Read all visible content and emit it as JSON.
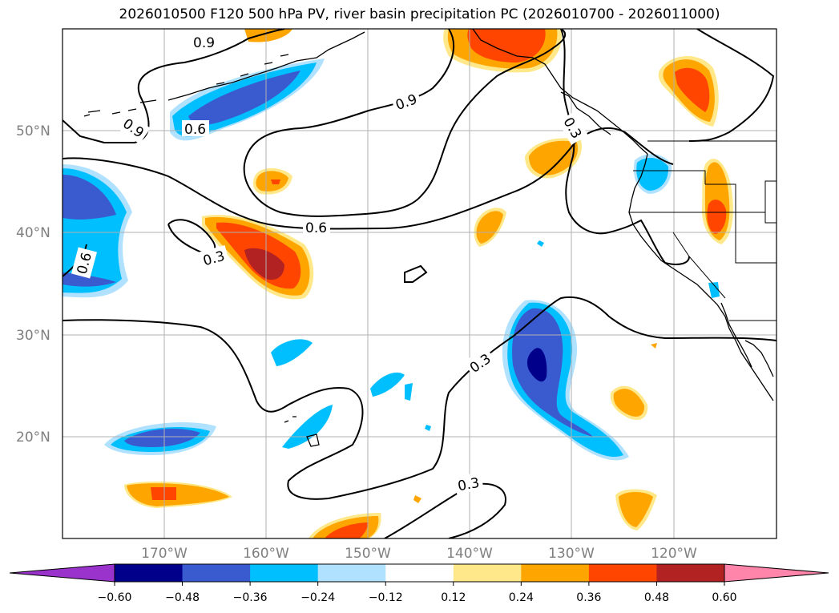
{
  "title": "2026010500 F120 500 hPa PV, river basin precipitation PC (2026010700 - 2026011000)",
  "map": {
    "lat_labels": [
      "50°N",
      "40°N",
      "30°N",
      "20°N"
    ],
    "lon_labels": [
      "170°W",
      "160°W",
      "150°W",
      "140°W",
      "130°W",
      "120°W"
    ],
    "contour_labels": [
      "0.9",
      "0.9",
      "0.9",
      "0.6",
      "0.6",
      "0.6",
      "0.3",
      "0.3",
      "0.3",
      "0.3"
    ],
    "gridlines": true
  },
  "colorbar": {
    "tick_labels": [
      "−0.60",
      "−0.48",
      "−0.36",
      "−0.24",
      "−0.12",
      "0.12",
      "0.24",
      "0.36",
      "0.48",
      "0.60"
    ],
    "colors": [
      "#9933cc",
      "#00008b",
      "#3a5bcf",
      "#00bfff",
      "#b0e2ff",
      "#ffffff",
      "#ffe88a",
      "#ffa500",
      "#ff4500",
      "#b22222",
      "#ff85aa"
    ]
  }
}
